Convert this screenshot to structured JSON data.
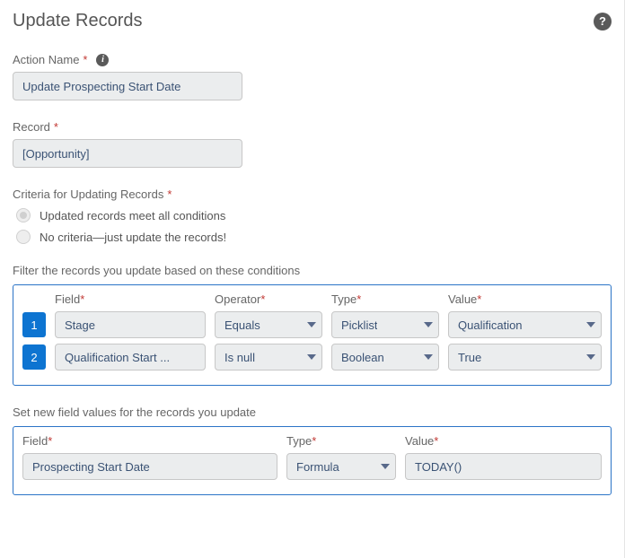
{
  "header": {
    "title": "Update Records"
  },
  "actionName": {
    "label": "Action Name",
    "value": "Update Prospecting Start Date"
  },
  "record": {
    "label": "Record",
    "value": "[Opportunity]"
  },
  "criteria": {
    "label": "Criteria for Updating Records",
    "options": [
      {
        "label": "Updated records meet all conditions",
        "selected": true
      },
      {
        "label": "No criteria—just update the records!",
        "selected": false
      }
    ]
  },
  "filter": {
    "label": "Filter the records you update based on these conditions",
    "headers": {
      "field": "Field",
      "operator": "Operator",
      "type": "Type",
      "value": "Value"
    },
    "rows": [
      {
        "n": "1",
        "field": "Stage",
        "operator": "Equals",
        "type": "Picklist",
        "value": "Qualification"
      },
      {
        "n": "2",
        "field": "Qualification Start ...",
        "operator": "Is null",
        "type": "Boolean",
        "value": "True"
      }
    ]
  },
  "setValues": {
    "label": "Set new field values for the records you update",
    "headers": {
      "field": "Field",
      "type": "Type",
      "value": "Value"
    },
    "rows": [
      {
        "field": "Prospecting Start Date",
        "type": "Formula",
        "value": "TODAY()"
      }
    ]
  },
  "style": {
    "accent": "#0d74d1",
    "outline": "#2b74c7",
    "inputBg": "#ebedee",
    "inputBorder": "#c7c7c7",
    "inputText": "#3a5274",
    "labelText": "#666666",
    "required": "#c23934"
  }
}
